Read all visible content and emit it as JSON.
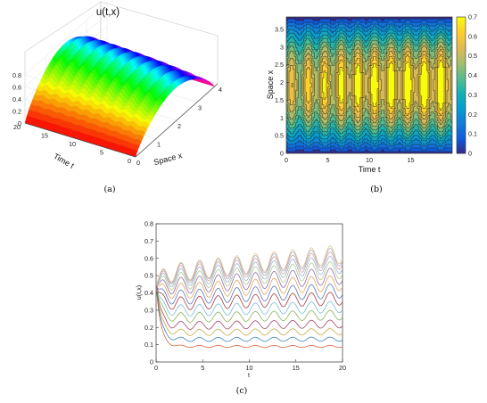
{
  "captions": {
    "a": "(a)",
    "b": "(b)",
    "c": "(c)"
  },
  "chart_data": [
    {
      "id": "a",
      "type": "surface",
      "title": "u(t,x)",
      "xlabel": "Space x",
      "ylabel": "Time t",
      "x_ticks": [
        "0",
        "1",
        "2",
        "3",
        "4"
      ],
      "t_ticks": [
        "0",
        "5",
        "10",
        "15",
        "20"
      ],
      "z_ticks": [
        "0",
        "0.2",
        "0.4",
        "0.6",
        "0.8"
      ],
      "xlim": [
        0,
        4
      ],
      "tlim": [
        0,
        20
      ],
      "zlim": [
        0,
        0.8
      ],
      "colormap": "hsv",
      "description_values": {
        "peak": 0.75,
        "oscillation_period": 2
      }
    },
    {
      "id": "b",
      "type": "heatmap",
      "xlabel": "Time t",
      "ylabel": "Space x",
      "x_ticks": [
        "0",
        "5",
        "10",
        "15"
      ],
      "y_ticks": [
        "0",
        "0.5",
        "1",
        "1.5",
        "2",
        "2.5",
        "3",
        "3.5"
      ],
      "colorbar_ticks": [
        "0",
        "0.1",
        "0.2",
        "0.3",
        "0.4",
        "0.5",
        "0.6",
        "0.7"
      ],
      "xlim": [
        0,
        20
      ],
      "ylim": [
        0,
        3.85
      ],
      "clim": [
        0,
        0.7
      ],
      "colormap": "parula",
      "contour_levels": [
        0.05,
        0.1,
        0.15,
        0.2,
        0.25,
        0.3,
        0.35,
        0.4,
        0.45,
        0.5,
        0.55,
        0.6,
        0.65
      ]
    },
    {
      "id": "c",
      "type": "line",
      "xlabel": "t",
      "ylabel": "u(t,x)",
      "x_ticks": [
        "0",
        "5",
        "10",
        "15",
        "20"
      ],
      "y_ticks": [
        "0",
        "0.1",
        "0.2",
        "0.3",
        "0.4",
        "0.5",
        "0.6",
        "0.7",
        "0.8"
      ],
      "xlim": [
        0,
        20
      ],
      "ylim": [
        0,
        0.8
      ],
      "series": [
        {
          "start": 0.45,
          "base": 0.09,
          "amp": 0.006,
          "color": "#d95f30"
        },
        {
          "start": 0.45,
          "base": 0.13,
          "amp": 0.012,
          "color": "#2e7fb5"
        },
        {
          "start": 0.45,
          "base": 0.17,
          "amp": 0.018,
          "color": "#c4a535"
        },
        {
          "start": 0.45,
          "base": 0.21,
          "amp": 0.023,
          "color": "#a03a5e"
        },
        {
          "start": 0.45,
          "base": 0.255,
          "amp": 0.028,
          "color": "#7cb04c"
        },
        {
          "start": 0.45,
          "base": 0.295,
          "amp": 0.033,
          "color": "#6bbbd6"
        },
        {
          "start": 0.45,
          "base": 0.335,
          "amp": 0.038,
          "color": "#a62f34"
        },
        {
          "start": 0.45,
          "base": 0.37,
          "amp": 0.042,
          "color": "#4f6ec0"
        },
        {
          "start": 0.45,
          "base": 0.405,
          "amp": 0.045,
          "color": "#e0a04a"
        },
        {
          "start": 0.45,
          "base": 0.435,
          "amp": 0.048,
          "color": "#8e63a8"
        },
        {
          "start": 0.45,
          "base": 0.46,
          "amp": 0.05,
          "color": "#a8c785"
        },
        {
          "start": 0.45,
          "base": 0.48,
          "amp": 0.051,
          "color": "#8fb3d6"
        },
        {
          "start": 0.45,
          "base": 0.495,
          "amp": 0.052,
          "color": "#d29a9a"
        },
        {
          "start": 0.45,
          "base": 0.505,
          "amp": 0.053,
          "color": "#9aa8cf"
        },
        {
          "start": 0.45,
          "base": 0.51,
          "amp": 0.054,
          "color": "#e6c28a"
        }
      ],
      "growth": 0.18,
      "period": 2
    }
  ]
}
